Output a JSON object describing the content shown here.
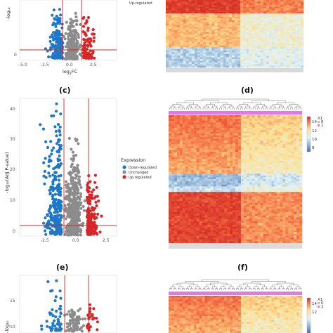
{
  "panels": {
    "c_label": "(c)",
    "d_label": "(d)",
    "e_label": "(e)",
    "f_label": "(f)"
  },
  "legend": {
    "title": "Expression",
    "items": [
      "Down-regulated",
      "Unchanged",
      "Up-regulated"
    ],
    "colors": [
      "#1f77c9",
      "#8c8c8c",
      "#d62728"
    ],
    "top_right_partial": "Up-regulated"
  },
  "heatmap_legend": {
    "title": "X1",
    "ticks": [
      "14",
      "12",
      "10",
      "8"
    ],
    "group_0": "0",
    "group_1": "1",
    "group_colors": [
      "#b8b8f0",
      "#e07ae0"
    ]
  },
  "colors": {
    "down": "#1f77c9",
    "unchanged": "#8c8c8c",
    "up": "#d62728",
    "threshold_line": "#d62728",
    "heat_high": "#d73027",
    "heat_mid": "#fee090",
    "heat_low": "#4575b4",
    "group_bar": "#e07ae0"
  },
  "chart_data": [
    {
      "type": "scatter",
      "panel": "top-left (partial)",
      "xlabel": "log₂FC",
      "x_ticks": [
        "-5.0",
        "-2.5",
        "0.0",
        "2.5"
      ],
      "y_ticks": [
        "0"
      ],
      "ylabel": "-log₁₀",
      "thresholds": {
        "log2fc": [
          -1,
          1
        ],
        "neg_log10_p": 1.3
      },
      "xlim": [
        -5.5,
        4.5
      ]
    },
    {
      "type": "scatter",
      "panel": "(c)",
      "xlabel": "",
      "ylabel": "-log₁₀(Adj.P-value)",
      "x_ticks": [
        "-2.5",
        "0.0",
        "2.5"
      ],
      "y_ticks": [
        "0",
        "10",
        "20",
        "30",
        "40"
      ],
      "xlim": [
        -4.5,
        3.5
      ],
      "ylim": [
        -1,
        43
      ],
      "thresholds": {
        "log2fc": [
          -1,
          1
        ],
        "neg_log10_p": 1.3
      },
      "series": [
        "Down-regulated",
        "Unchanged",
        "Up-regulated"
      ]
    },
    {
      "type": "heatmap",
      "panel": "(d)",
      "legend_title": "X1",
      "color_ticks": [
        "14",
        "12",
        "10",
        "8"
      ],
      "groups": [
        "0",
        "1"
      ]
    },
    {
      "type": "scatter",
      "panel": "(e)",
      "x_ticks": [],
      "y_ticks": [
        "10",
        "15"
      ],
      "xlim": [
        -4.5,
        3.5
      ],
      "ylim": [
        8,
        20
      ],
      "thresholds": {
        "log2fc": [
          -1,
          1
        ]
      }
    },
    {
      "type": "heatmap",
      "panel": "(f)",
      "legend_title": "X1",
      "color_ticks": [
        "14",
        "12"
      ],
      "groups": [
        "0",
        "1"
      ]
    }
  ],
  "axis_labels": {
    "top_ylabel": "-log₁₀",
    "top_xlabel_base": "log",
    "top_xlabel_sub": "2",
    "top_xlabel_tail": "FC",
    "c_ylabel": "-log₁₀(Adj.P-value)",
    "e_ylabel": "-log₁₀"
  },
  "top_ticks_x": [
    "-5.0",
    "-2.5",
    "0.0",
    "2.5"
  ],
  "top_tick_y0": "0",
  "c_ticks_x": [
    "-2.5",
    "0.0",
    "2.5"
  ],
  "c_ticks_y": [
    "0",
    "10",
    "20",
    "30",
    "40"
  ],
  "e_ticks_y": [
    "10",
    "15"
  ],
  "d_legend_ticks": [
    "14",
    "12",
    "10",
    "8"
  ],
  "f_legend_ticks": [
    "14",
    "12"
  ]
}
